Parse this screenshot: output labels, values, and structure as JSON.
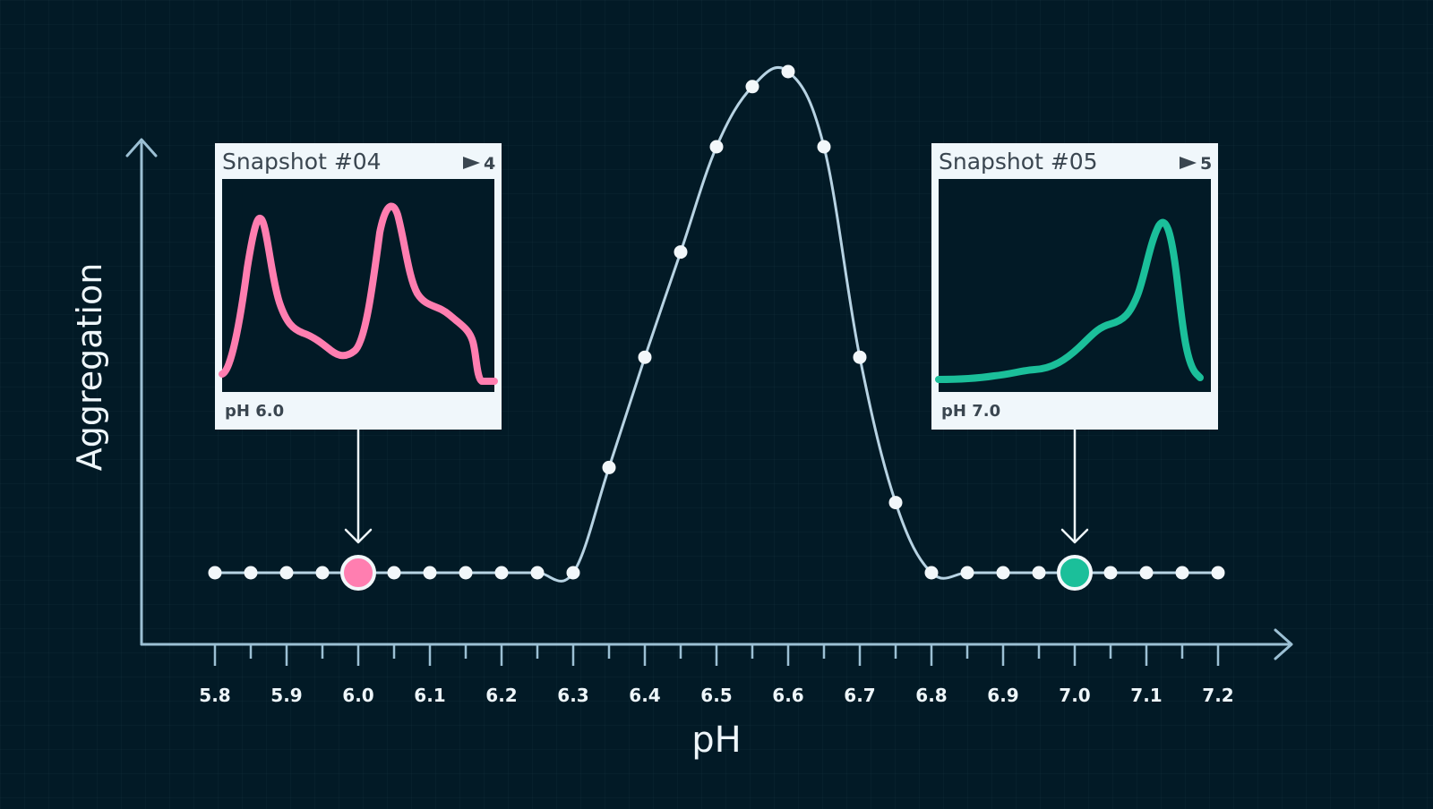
{
  "chart_data": {
    "type": "line",
    "xlabel": "pH",
    "ylabel": "Aggregation",
    "xlim": [
      5.8,
      7.2
    ],
    "ylim": [
      0,
      1
    ],
    "x_tick_labels": [
      "5.8",
      "5.9",
      "6.0",
      "6.1",
      "6.2",
      "6.3",
      "6.4",
      "6.5",
      "6.6",
      "6.7",
      "6.8",
      "6.9",
      "7.0",
      "7.1",
      "7.2"
    ],
    "series": [
      {
        "x": [
          5.8,
          5.85,
          5.9,
          5.95,
          6.0,
          6.05,
          6.1,
          6.15,
          6.2,
          6.25,
          6.3,
          6.35,
          6.4,
          6.45,
          6.5,
          6.55,
          6.6,
          6.65,
          6.7,
          6.75,
          6.8,
          6.85,
          6.9,
          6.95,
          7.0,
          7.05,
          7.1,
          7.15,
          7.2
        ],
        "y": [
          0,
          0,
          0,
          0,
          0,
          0,
          0,
          0,
          0,
          0,
          0,
          0.21,
          0.43,
          0.64,
          0.85,
          0.97,
          1.0,
          0.85,
          0.43,
          0.14,
          0,
          0,
          0,
          0,
          0,
          0,
          0,
          0,
          0
        ]
      }
    ],
    "highlighted_points": [
      {
        "x": 6.0,
        "color": "#ff7eb0"
      },
      {
        "x": 7.0,
        "color": "#1bbf9a"
      }
    ],
    "colors": {
      "background": "#021a26",
      "axis": "#9cc0d4",
      "line": "#b7d3e3",
      "point": "#f2f7fa"
    }
  },
  "snapshots": [
    {
      "title": "Snapshot #04",
      "flag_count": "4",
      "caption": "pH 6.0",
      "points_to_x": 6.0,
      "color": "#ff7eb0"
    },
    {
      "title": "Snapshot #05",
      "flag_count": "5",
      "caption": "pH 7.0",
      "points_to_x": 7.0,
      "color": "#1bbf9a"
    }
  ]
}
